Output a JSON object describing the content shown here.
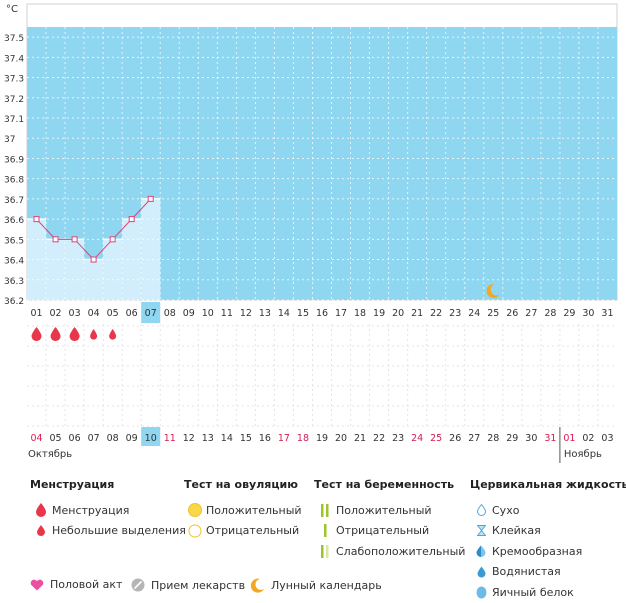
{
  "chart_data": {
    "type": "line",
    "unit_label": "°C",
    "y_ticks": [
      "36.2",
      "36.3",
      "36.4",
      "36.5",
      "36.6",
      "36.7",
      "36.8",
      "36.9",
      "37",
      "37.1",
      "37.2",
      "37.3",
      "37.4",
      "37.5"
    ],
    "ylim": [
      36.2,
      37.55
    ],
    "cycle_days": [
      "01",
      "02",
      "03",
      "04",
      "05",
      "06",
      "07",
      "08",
      "09",
      "10",
      "11",
      "12",
      "13",
      "14",
      "15",
      "16",
      "17",
      "18",
      "19",
      "20",
      "21",
      "22",
      "23",
      "24",
      "25",
      "26",
      "27",
      "28",
      "29",
      "30",
      "31"
    ],
    "temperature": [
      {
        "day": "01",
        "value": 36.6
      },
      {
        "day": "02",
        "value": 36.5
      },
      {
        "day": "03",
        "value": 36.5
      },
      {
        "day": "04",
        "value": 36.4
      },
      {
        "day": "05",
        "value": 36.5
      },
      {
        "day": "06",
        "value": 36.6
      },
      {
        "day": "07",
        "value": 36.7
      }
    ],
    "current_cycle_day": "07",
    "moon_day": "25",
    "menstruation": [
      "big",
      "big",
      "big",
      "small",
      "small"
    ],
    "calendar_dates": [
      {
        "d": "04",
        "red": true
      },
      {
        "d": "05"
      },
      {
        "d": "06"
      },
      {
        "d": "07"
      },
      {
        "d": "08"
      },
      {
        "d": "09"
      },
      {
        "d": "10",
        "today": true
      },
      {
        "d": "11",
        "red": true
      },
      {
        "d": "12"
      },
      {
        "d": "13"
      },
      {
        "d": "14"
      },
      {
        "d": "15"
      },
      {
        "d": "16"
      },
      {
        "d": "17",
        "red": true
      },
      {
        "d": "18",
        "red": true
      },
      {
        "d": "19"
      },
      {
        "d": "20"
      },
      {
        "d": "21"
      },
      {
        "d": "22"
      },
      {
        "d": "23"
      },
      {
        "d": "24",
        "red": true
      },
      {
        "d": "25",
        "red": true
      },
      {
        "d": "26"
      },
      {
        "d": "27"
      },
      {
        "d": "28"
      },
      {
        "d": "29"
      },
      {
        "d": "30"
      },
      {
        "d": "31",
        "red": true
      },
      {
        "d": "01",
        "red": true
      },
      {
        "d": "02"
      },
      {
        "d": "03"
      }
    ],
    "month_left": "Октябрь",
    "month_right": "Ноябрь",
    "colors": {
      "plot_bg": "#8fd6f0",
      "filled_bg": "#d2edfc",
      "line": "#e0427c",
      "highlight": "#8fd6f0",
      "red_text": "#d81b52",
      "drop": "#e8364a",
      "moon": "#f5a623"
    }
  },
  "legend": {
    "menstruation": {
      "title": "Менструация",
      "items": [
        "Менструация",
        "Небольшие выделения"
      ]
    },
    "ovulation_test": {
      "title": "Тест на овуляцию",
      "items": [
        "Положительный",
        "Отрицательный"
      ]
    },
    "pregnancy_test": {
      "title": "Тест на беременность",
      "items": [
        "Положительный",
        "Отрицательный",
        "Слабоположительный"
      ]
    },
    "cervical_fluid": {
      "title": "Цервикальная жидкость",
      "items": [
        "Сухо",
        "Клейкая",
        "Кремообразная",
        "Водянистая",
        "Яичный белок"
      ]
    },
    "bottom": [
      "Половой акт",
      "Прием лекарств",
      "Лунный календарь"
    ]
  }
}
